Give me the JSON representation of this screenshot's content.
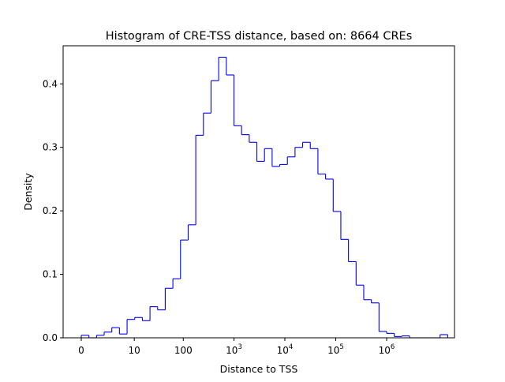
{
  "chart_data": {
    "type": "histogram",
    "title": "Histogram of CRE-TSS distance, based on: 8664 CREs",
    "xlabel": "Distance to TSS",
    "ylabel": "Density",
    "x_scale": "symlog",
    "ylim": [
      0,
      0.46
    ],
    "grid": false,
    "line_color": "#0000ff",
    "x_ticks": [
      {
        "value": 0,
        "base": "0",
        "sup": ""
      },
      {
        "value": 10,
        "base": "10",
        "sup": ""
      },
      {
        "value": 100,
        "base": "100",
        "sup": ""
      },
      {
        "value": 1000,
        "base": "10",
        "sup": "3"
      },
      {
        "value": 10000,
        "base": "10",
        "sup": "4"
      },
      {
        "value": 100000,
        "base": "10",
        "sup": "5"
      },
      {
        "value": 1000000,
        "base": "10",
        "sup": "6"
      }
    ],
    "y_ticks": [
      {
        "value": 0.0,
        "label": "0.0"
      },
      {
        "value": 0.1,
        "label": "0.1"
      },
      {
        "value": 0.2,
        "label": "0.2"
      },
      {
        "value": 0.3,
        "label": "0.3"
      },
      {
        "value": 0.4,
        "label": "0.4"
      }
    ],
    "bin_edges_log_offset": [
      0.0,
      0.15,
      0.3,
      0.45,
      0.6,
      0.75,
      0.9,
      1.05,
      1.2,
      1.35,
      1.5,
      1.65,
      1.8,
      1.95,
      2.1,
      2.25,
      2.4,
      2.55,
      2.7,
      2.85,
      3.0,
      3.15,
      3.3,
      3.45,
      3.6,
      3.75,
      3.9,
      4.05,
      4.2,
      4.35,
      4.5,
      4.65,
      4.8,
      4.95,
      5.1,
      5.25,
      5.4,
      5.55,
      5.7,
      5.85,
      6.0,
      6.15,
      6.3,
      6.45,
      6.6,
      6.75,
      6.9,
      7.05,
      7.2
    ],
    "densities": [
      0.004,
      0.0,
      0.004,
      0.009,
      0.016,
      0.006,
      0.029,
      0.032,
      0.027,
      0.049,
      0.044,
      0.078,
      0.093,
      0.154,
      0.178,
      0.319,
      0.354,
      0.405,
      0.442,
      0.414,
      0.334,
      0.32,
      0.308,
      0.278,
      0.298,
      0.27,
      0.273,
      0.285,
      0.3,
      0.308,
      0.298,
      0.258,
      0.25,
      0.199,
      0.155,
      0.12,
      0.083,
      0.06,
      0.055,
      0.01,
      0.007,
      0.002,
      0.003,
      0.0,
      0.0,
      0.0,
      0.0,
      0.005
    ]
  }
}
